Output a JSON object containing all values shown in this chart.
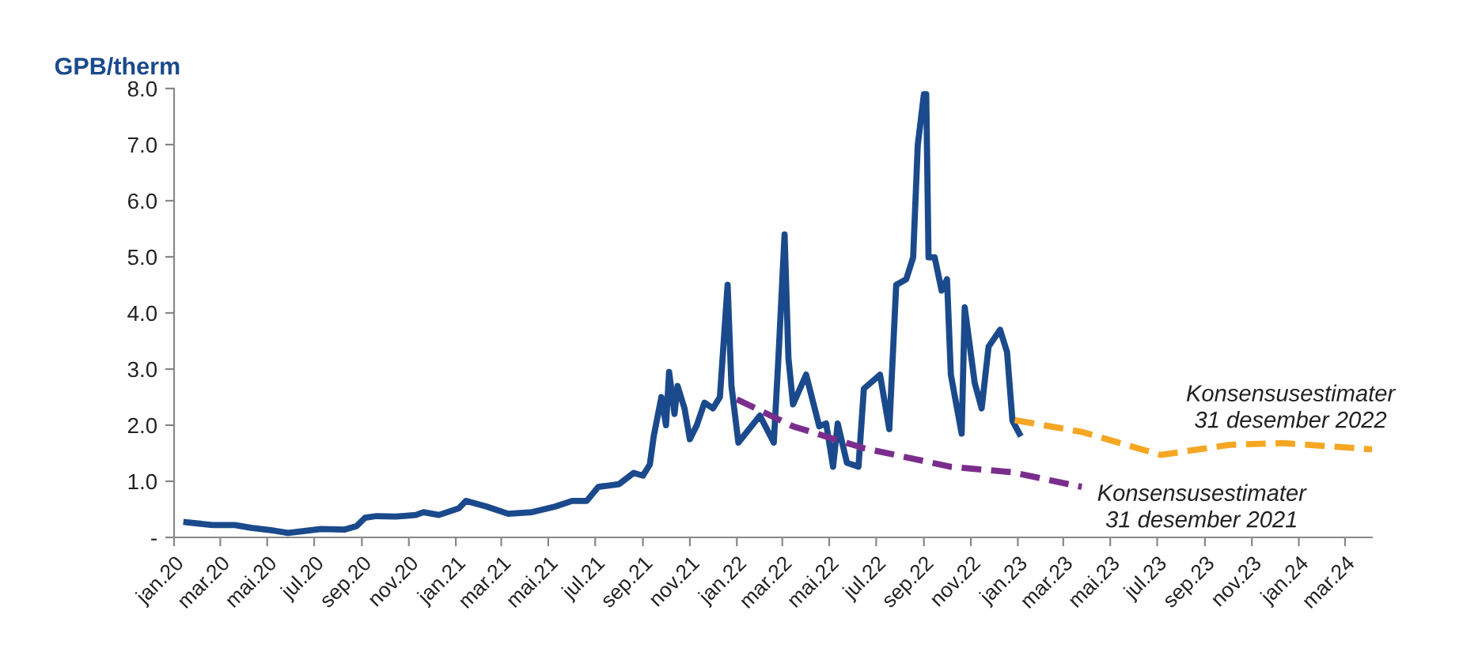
{
  "chart_data": {
    "type": "line",
    "ylabel": "GPB/therm",
    "ylim": [
      0,
      8
    ],
    "yticks": [
      {
        "value": 0,
        "label": "-"
      },
      {
        "value": 1,
        "label": "1.0"
      },
      {
        "value": 2,
        "label": "2.0"
      },
      {
        "value": 3,
        "label": "3.0"
      },
      {
        "value": 4,
        "label": "4.0"
      },
      {
        "value": 5,
        "label": "5.0"
      },
      {
        "value": 6,
        "label": "6.0"
      },
      {
        "value": 7,
        "label": "7.0"
      },
      {
        "value": 8,
        "label": "8.0"
      }
    ],
    "xlim": [
      "2020-01-01",
      "2024-04-05"
    ],
    "xticks": [
      {
        "value": "2020-01-01",
        "label": "jan.20"
      },
      {
        "value": "2020-03-01",
        "label": "mar.20"
      },
      {
        "value": "2020-05-01",
        "label": "mai.20"
      },
      {
        "value": "2020-07-01",
        "label": "jul.20"
      },
      {
        "value": "2020-09-01",
        "label": "sep.20"
      },
      {
        "value": "2020-11-01",
        "label": "nov.20"
      },
      {
        "value": "2021-01-01",
        "label": "jan.21"
      },
      {
        "value": "2021-03-01",
        "label": "mar.21"
      },
      {
        "value": "2021-05-01",
        "label": "mai.21"
      },
      {
        "value": "2021-07-01",
        "label": "jul.21"
      },
      {
        "value": "2021-09-01",
        "label": "sep.21"
      },
      {
        "value": "2021-11-01",
        "label": "nov.21"
      },
      {
        "value": "2022-01-01",
        "label": "jan.22"
      },
      {
        "value": "2022-03-01",
        "label": "mar.22"
      },
      {
        "value": "2022-05-01",
        "label": "mai.22"
      },
      {
        "value": "2022-07-01",
        "label": "jul.22"
      },
      {
        "value": "2022-09-01",
        "label": "sep.22"
      },
      {
        "value": "2022-11-01",
        "label": "nov.22"
      },
      {
        "value": "2023-01-01",
        "label": "jan.23"
      },
      {
        "value": "2023-03-01",
        "label": "mar.23"
      },
      {
        "value": "2023-05-01",
        "label": "mai.23"
      },
      {
        "value": "2023-07-01",
        "label": "jul.23"
      },
      {
        "value": "2023-09-01",
        "label": "sep.23"
      },
      {
        "value": "2023-11-01",
        "label": "nov.23"
      },
      {
        "value": "2024-01-01",
        "label": "jan.24"
      },
      {
        "value": "2024-03-01",
        "label": "mar.24"
      }
    ],
    "grid": false,
    "legend": false,
    "series": [
      {
        "color": "#1b4a8c",
        "line_style": "solid",
        "x": [
          "2020-01-17",
          "2020-02-20",
          "2020-03-20",
          "2020-04-10",
          "2020-05-10",
          "2020-05-28",
          "2020-07-10",
          "2020-08-10",
          "2020-08-25",
          "2020-09-05",
          "2020-09-20",
          "2020-10-15",
          "2020-11-10",
          "2020-11-20",
          "2020-12-10",
          "2021-01-05",
          "2021-01-14",
          "2021-02-10",
          "2021-03-10",
          "2021-04-10",
          "2021-05-10",
          "2021-06-01",
          "2021-06-20",
          "2021-07-05",
          "2021-08-01",
          "2021-08-20",
          "2021-09-01",
          "2021-09-10",
          "2021-09-15",
          "2021-09-25",
          "2021-10-01",
          "2021-10-05",
          "2021-10-12",
          "2021-10-16",
          "2021-10-25",
          "2021-11-01",
          "2021-11-10",
          "2021-11-20",
          "2021-12-01",
          "2021-12-10",
          "2021-12-15",
          "2021-12-20",
          "2021-12-25",
          "2022-01-03",
          "2022-01-31",
          "2022-02-18",
          "2022-02-24",
          "2022-03-04",
          "2022-03-09",
          "2022-03-15",
          "2022-04-01",
          "2022-04-18",
          "2022-04-27",
          "2022-05-06",
          "2022-05-12",
          "2022-05-24",
          "2022-06-08",
          "2022-06-15",
          "2022-07-06",
          "2022-07-18",
          "2022-07-27",
          "2022-08-09",
          "2022-08-18",
          "2022-08-24",
          "2022-09-01",
          "2022-09-04",
          "2022-09-07",
          "2022-09-15",
          "2022-09-24",
          "2022-10-01",
          "2022-10-06",
          "2022-10-20",
          "2022-10-24",
          "2022-11-06",
          "2022-11-15",
          "2022-11-24",
          "2022-12-09",
          "2022-12-18",
          "2022-12-25",
          "2023-01-03"
        ],
        "values": [
          0.27,
          0.22,
          0.22,
          0.17,
          0.12,
          0.08,
          0.15,
          0.14,
          0.2,
          0.35,
          0.38,
          0.37,
          0.4,
          0.45,
          0.4,
          0.52,
          0.65,
          0.55,
          0.42,
          0.45,
          0.55,
          0.65,
          0.65,
          0.9,
          0.95,
          1.15,
          1.1,
          1.3,
          1.8,
          2.5,
          2.0,
          2.95,
          2.2,
          2.7,
          2.3,
          1.75,
          2.0,
          2.4,
          2.3,
          2.5,
          3.5,
          4.5,
          2.7,
          1.69,
          2.17,
          1.69,
          3.19,
          5.4,
          3.2,
          2.37,
          2.9,
          1.98,
          2.03,
          1.26,
          2.03,
          1.33,
          1.26,
          2.65,
          2.9,
          1.93,
          4.5,
          4.6,
          4.99,
          6.99,
          7.9,
          7.9,
          4.99,
          4.99,
          4.4,
          4.6,
          2.9,
          1.85,
          4.1,
          2.75,
          2.3,
          3.4,
          3.7,
          3.3,
          2.08,
          1.85
        ]
      },
      {
        "name": "Konsensusestimater\n31 desember 2021",
        "color": "#7b2d8e",
        "line_style": "dashed",
        "x": [
          "2022-01-01",
          "2022-03-15",
          "2022-06-15",
          "2022-10-05",
          "2022-12-25",
          "2023-03-25"
        ],
        "values": [
          2.46,
          1.98,
          1.59,
          1.26,
          1.16,
          0.9
        ]
      },
      {
        "name": "Konsensusestimater\n31 desember 2022",
        "color": "#f5a623",
        "line_style": "dashed",
        "x": [
          "2022-12-28",
          "2023-03-25",
          "2023-07-06",
          "2023-10-03",
          "2023-12-12",
          "2024-04-05"
        ],
        "values": [
          2.09,
          1.88,
          1.47,
          1.65,
          1.68,
          1.57
        ]
      }
    ]
  }
}
